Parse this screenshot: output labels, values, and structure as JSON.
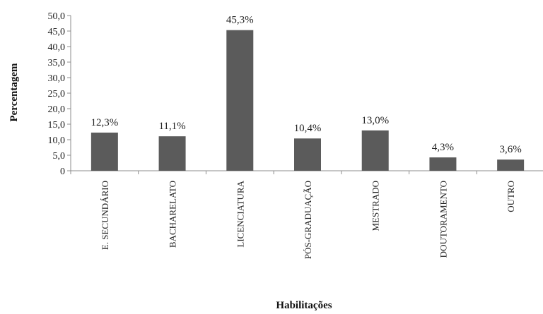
{
  "chart_data": {
    "type": "bar",
    "title": "",
    "xlabel": "Habilitações",
    "ylabel": "Percentagem",
    "ylim": [
      0,
      50
    ],
    "y_ticks": [
      "0",
      "5,0",
      "10,0",
      "15,0",
      "20,0",
      "25,0",
      "30,0",
      "35,0",
      "40,0",
      "45,0",
      "50,0"
    ],
    "grid": false,
    "legend": "none",
    "categories": [
      "E. SECUNDÁRIO",
      "BACHARELATO",
      "LICENCIATURA",
      "PÓS-GRADUAÇÃO",
      "MESTRADO",
      "DOUTORAMENTO",
      "OUTRO"
    ],
    "values": [
      12.3,
      11.1,
      45.3,
      10.4,
      13.0,
      4.3,
      3.6
    ],
    "data_labels": [
      "12,3%",
      "11,1%",
      "45,3%",
      "10,4%",
      "13,0%",
      "4,3%",
      "3,6%"
    ],
    "bar_color": "#5b5b5b",
    "axis_color": "#8c8c8c"
  }
}
